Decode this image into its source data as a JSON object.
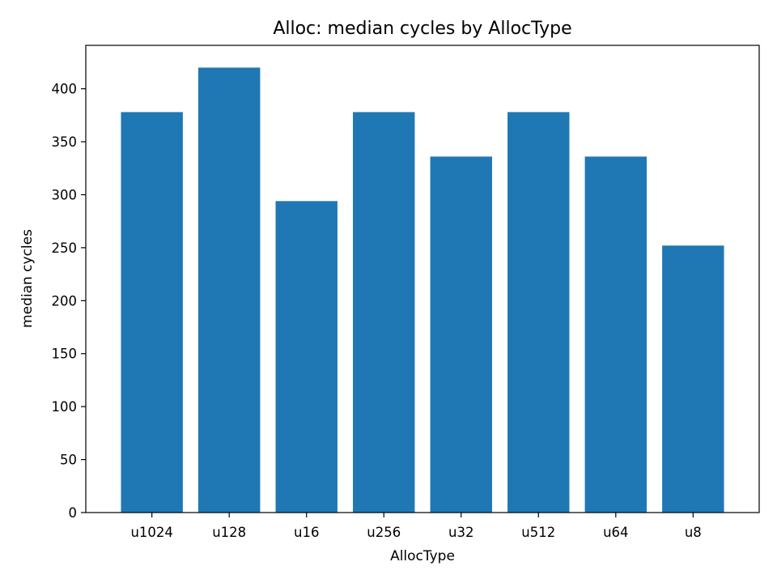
{
  "chart_data": {
    "type": "bar",
    "title": "Alloc: median cycles by AllocType",
    "xlabel": "AllocType",
    "ylabel": "median cycles",
    "categories": [
      "u1024",
      "u128",
      "u16",
      "u256",
      "u32",
      "u512",
      "u64",
      "u8"
    ],
    "values": [
      378,
      420,
      294,
      378,
      336,
      378,
      336,
      252
    ],
    "ylim": [
      0,
      441
    ],
    "yticks": [
      0,
      50,
      100,
      150,
      200,
      250,
      300,
      350,
      400
    ],
    "grid": false,
    "bar_color": "#1f77b4"
  }
}
